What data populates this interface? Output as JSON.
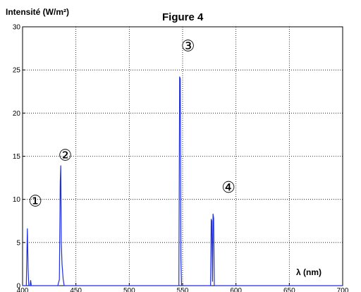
{
  "chart_data": {
    "type": "line",
    "title": "Figure 4",
    "ylabel": "Intensité (W/m²)",
    "xlabel": "λ (nm)",
    "xlim": [
      400,
      700
    ],
    "ylim": [
      0,
      30
    ],
    "x_ticks": [
      400,
      450,
      500,
      550,
      600,
      650,
      700
    ],
    "y_ticks": [
      0,
      5,
      10,
      15,
      20,
      25,
      30
    ],
    "grid": true,
    "line_color": "#1f2fe0",
    "series": [
      {
        "x": [
          400,
          403.5,
          404.5,
          405.2,
          405.8,
          407,
          407.6,
          408.2,
          433,
          434.5,
          435.3,
          435.8,
          436.3,
          437,
          438,
          439,
          546.5,
          547.2,
          547.8,
          548.4,
          549,
          576.2,
          576.8,
          577.3,
          578,
          578.5,
          579.1,
          579.7,
          700
        ],
        "y": [
          0,
          0,
          6.6,
          2.0,
          0,
          0,
          0.6,
          0,
          0,
          0.7,
          12.0,
          13.9,
          5.0,
          2.5,
          0.8,
          0,
          0,
          24.2,
          24.0,
          3.0,
          0,
          0,
          7.7,
          7.5,
          0.5,
          8.3,
          7.8,
          0,
          0
        ]
      }
    ],
    "annotations": [
      {
        "label": "①",
        "x": 412,
        "y": 9.2
      },
      {
        "label": "②",
        "x": 440,
        "y": 14.5
      },
      {
        "label": "③",
        "x": 555,
        "y": 27.2
      },
      {
        "label": "④",
        "x": 593,
        "y": 10.8
      }
    ]
  }
}
